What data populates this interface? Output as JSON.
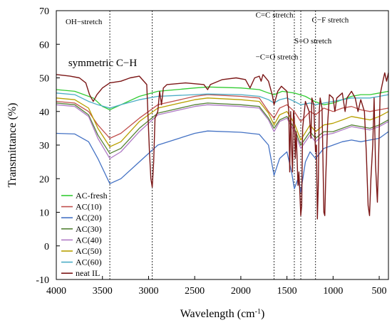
{
  "chart_data": {
    "type": "line",
    "xlabel_main": "Wavelength (cm",
    "xlabel_sup": "-1",
    "xlabel_end": ")",
    "ylabel": "Transmittance (%)",
    "xlim": [
      4000,
      400
    ],
    "ylim": [
      -10,
      70
    ],
    "xticks": [
      4000,
      3500,
      3000,
      2500,
      2000,
      1500,
      1000,
      500
    ],
    "yticks": [
      -10,
      0,
      10,
      20,
      30,
      40,
      50,
      60,
      70
    ],
    "grid": false,
    "legend_position": "bottom-left",
    "reference_lines": [
      3420,
      2960,
      1640,
      1420,
      1350,
      1190
    ],
    "annotations": [
      {
        "text": "OH−stretch",
        "x": 3900,
        "y": 66,
        "size": 11
      },
      {
        "text": "symmetric C−H",
        "x": 3870,
        "y": 53.5,
        "size": 15
      },
      {
        "text": "C=C stretch",
        "x": 1840,
        "y": 68,
        "size": 11
      },
      {
        "text": "−C=O stretch",
        "x": 1840,
        "y": 55.5,
        "size": 11
      },
      {
        "text": "C−F stretch",
        "x": 1230,
        "y": 66.5,
        "size": 11
      },
      {
        "text": "S=O stretch",
        "x": 1420,
        "y": 60.3,
        "size": 11
      }
    ],
    "series": [
      {
        "name": "AC-fresh",
        "color": "#33cc33",
        "points": [
          [
            4000,
            46.5
          ],
          [
            3800,
            46
          ],
          [
            3600,
            44
          ],
          [
            3500,
            41.5
          ],
          [
            3420,
            40.5
          ],
          [
            3300,
            42
          ],
          [
            3100,
            44.5
          ],
          [
            2900,
            46
          ],
          [
            2500,
            47
          ],
          [
            2360,
            47.3
          ],
          [
            2000,
            47
          ],
          [
            1800,
            46.5
          ],
          [
            1700,
            45.5
          ],
          [
            1640,
            45
          ],
          [
            1550,
            46
          ],
          [
            1420,
            45.5
          ],
          [
            1300,
            44.5
          ],
          [
            1200,
            43
          ],
          [
            1100,
            42
          ],
          [
            1000,
            42.5
          ],
          [
            900,
            43.5
          ],
          [
            800,
            44.5
          ],
          [
            700,
            45
          ],
          [
            600,
            45
          ],
          [
            500,
            45.5
          ],
          [
            400,
            46
          ]
        ]
      },
      {
        "name": "AC(10)",
        "color": "#c0504d",
        "points": [
          [
            4000,
            43
          ],
          [
            3800,
            42.5
          ],
          [
            3650,
            40
          ],
          [
            3550,
            36
          ],
          [
            3420,
            32
          ],
          [
            3300,
            33.5
          ],
          [
            3100,
            38
          ],
          [
            2900,
            42
          ],
          [
            2500,
            44.5
          ],
          [
            2360,
            45
          ],
          [
            2000,
            44.5
          ],
          [
            1800,
            44
          ],
          [
            1700,
            40
          ],
          [
            1640,
            38
          ],
          [
            1580,
            41
          ],
          [
            1500,
            42
          ],
          [
            1420,
            40
          ],
          [
            1350,
            37
          ],
          [
            1250,
            40
          ],
          [
            1190,
            39
          ],
          [
            1100,
            41
          ],
          [
            1000,
            40
          ],
          [
            900,
            41
          ],
          [
            800,
            41.5
          ],
          [
            700,
            40.5
          ],
          [
            600,
            40
          ],
          [
            500,
            40.5
          ],
          [
            400,
            41
          ]
        ]
      },
      {
        "name": "AC(20)",
        "color": "#4472c4",
        "points": [
          [
            4000,
            33.5
          ],
          [
            3800,
            33.3
          ],
          [
            3650,
            31
          ],
          [
            3550,
            26
          ],
          [
            3420,
            18.5
          ],
          [
            3300,
            20
          ],
          [
            3100,
            25
          ],
          [
            2900,
            30
          ],
          [
            2500,
            33.5
          ],
          [
            2360,
            34.2
          ],
          [
            2000,
            33.8
          ],
          [
            1800,
            33.2
          ],
          [
            1700,
            30
          ],
          [
            1640,
            21
          ],
          [
            1580,
            26
          ],
          [
            1500,
            28
          ],
          [
            1450,
            22
          ],
          [
            1420,
            17
          ],
          [
            1380,
            20
          ],
          [
            1350,
            16
          ],
          [
            1300,
            25
          ],
          [
            1250,
            28
          ],
          [
            1190,
            26
          ],
          [
            1100,
            29
          ],
          [
            1000,
            30
          ],
          [
            900,
            31
          ],
          [
            800,
            31.5
          ],
          [
            700,
            31
          ],
          [
            600,
            31.5
          ],
          [
            500,
            32
          ],
          [
            400,
            34
          ]
        ]
      },
      {
        "name": "AC(30)",
        "color": "#548235",
        "points": [
          [
            4000,
            42.5
          ],
          [
            3800,
            42
          ],
          [
            3650,
            39
          ],
          [
            3550,
            33
          ],
          [
            3420,
            27.5
          ],
          [
            3300,
            29
          ],
          [
            3100,
            35
          ],
          [
            2900,
            39.5
          ],
          [
            2500,
            42
          ],
          [
            2360,
            42.5
          ],
          [
            2000,
            42
          ],
          [
            1800,
            41.5
          ],
          [
            1700,
            38
          ],
          [
            1640,
            35
          ],
          [
            1580,
            37.5
          ],
          [
            1500,
            38.5
          ],
          [
            1420,
            35
          ],
          [
            1350,
            30
          ],
          [
            1250,
            34
          ],
          [
            1190,
            32
          ],
          [
            1100,
            34
          ],
          [
            1000,
            34
          ],
          [
            900,
            35
          ],
          [
            800,
            36
          ],
          [
            700,
            35.5
          ],
          [
            600,
            35
          ],
          [
            500,
            36
          ],
          [
            400,
            37.5
          ]
        ]
      },
      {
        "name": "AC(40)",
        "color": "#b07cc6",
        "points": [
          [
            4000,
            42
          ],
          [
            3800,
            41.5
          ],
          [
            3650,
            38.5
          ],
          [
            3550,
            32
          ],
          [
            3420,
            26
          ],
          [
            3300,
            28
          ],
          [
            3100,
            34
          ],
          [
            2900,
            39
          ],
          [
            2500,
            41.5
          ],
          [
            2360,
            42
          ],
          [
            2000,
            41.5
          ],
          [
            1800,
            41
          ],
          [
            1700,
            37.5
          ],
          [
            1640,
            34
          ],
          [
            1580,
            37
          ],
          [
            1500,
            38
          ],
          [
            1420,
            34
          ],
          [
            1350,
            29
          ],
          [
            1250,
            33
          ],
          [
            1190,
            31
          ],
          [
            1100,
            33
          ],
          [
            1000,
            33.5
          ],
          [
            900,
            34.5
          ],
          [
            800,
            35.5
          ],
          [
            700,
            35
          ],
          [
            600,
            34.5
          ],
          [
            500,
            35.5
          ],
          [
            400,
            37
          ]
        ]
      },
      {
        "name": "AC(50)",
        "color": "#b8a000",
        "points": [
          [
            4000,
            44
          ],
          [
            3800,
            43.5
          ],
          [
            3650,
            41
          ],
          [
            3550,
            35
          ],
          [
            3420,
            29.5
          ],
          [
            3300,
            31
          ],
          [
            3100,
            37
          ],
          [
            2900,
            41
          ],
          [
            2500,
            43.5
          ],
          [
            2360,
            44
          ],
          [
            2000,
            43.5
          ],
          [
            1800,
            43
          ],
          [
            1700,
            39.5
          ],
          [
            1640,
            36
          ],
          [
            1580,
            39
          ],
          [
            1500,
            40
          ],
          [
            1420,
            36.5
          ],
          [
            1350,
            31.5
          ],
          [
            1250,
            36
          ],
          [
            1190,
            34
          ],
          [
            1100,
            36
          ],
          [
            1000,
            36.5
          ],
          [
            900,
            37.5
          ],
          [
            800,
            38.5
          ],
          [
            700,
            38
          ],
          [
            600,
            37.5
          ],
          [
            500,
            38.5
          ],
          [
            400,
            40
          ]
        ]
      },
      {
        "name": "AC(60)",
        "color": "#4bacc6",
        "points": [
          [
            4000,
            45.5
          ],
          [
            3800,
            45
          ],
          [
            3650,
            43
          ],
          [
            3550,
            42
          ],
          [
            3420,
            41
          ],
          [
            3300,
            42
          ],
          [
            3100,
            43.5
          ],
          [
            2900,
            44.5
          ],
          [
            2500,
            45
          ],
          [
            2360,
            45.2
          ],
          [
            2000,
            45
          ],
          [
            1800,
            44.5
          ],
          [
            1700,
            43.5
          ],
          [
            1640,
            42.5
          ],
          [
            1580,
            43.5
          ],
          [
            1500,
            44
          ],
          [
            1420,
            43
          ],
          [
            1350,
            42
          ],
          [
            1250,
            42.5
          ],
          [
            1190,
            42
          ],
          [
            1100,
            42.5
          ],
          [
            1000,
            43
          ],
          [
            900,
            43.5
          ],
          [
            800,
            44
          ],
          [
            700,
            44
          ],
          [
            600,
            44
          ],
          [
            500,
            44.5
          ],
          [
            400,
            45
          ]
        ]
      },
      {
        "name": "neat IL",
        "color": "#7b1616",
        "points": [
          [
            4000,
            51
          ],
          [
            3850,
            50.5
          ],
          [
            3750,
            50
          ],
          [
            3680,
            48.5
          ],
          [
            3640,
            45
          ],
          [
            3600,
            43
          ],
          [
            3560,
            45
          ],
          [
            3500,
            47
          ],
          [
            3420,
            48.5
          ],
          [
            3300,
            49
          ],
          [
            3200,
            50
          ],
          [
            3100,
            50.5
          ],
          [
            3020,
            48
          ],
          [
            2990,
            28
          ],
          [
            2975,
            20
          ],
          [
            2960,
            17.5
          ],
          [
            2945,
            25
          ],
          [
            2930,
            38
          ],
          [
            2900,
            40
          ],
          [
            2880,
            46
          ],
          [
            2860,
            42
          ],
          [
            2840,
            47
          ],
          [
            2800,
            48
          ],
          [
            2600,
            48.5
          ],
          [
            2400,
            48
          ],
          [
            2360,
            46.5
          ],
          [
            2330,
            48
          ],
          [
            2200,
            49.5
          ],
          [
            2050,
            50
          ],
          [
            1950,
            49.5
          ],
          [
            1900,
            47
          ],
          [
            1850,
            50
          ],
          [
            1800,
            50.5
          ],
          [
            1780,
            49
          ],
          [
            1760,
            51
          ],
          [
            1700,
            49
          ],
          [
            1660,
            45
          ],
          [
            1640,
            42
          ],
          [
            1600,
            46
          ],
          [
            1560,
            47.5
          ],
          [
            1500,
            46
          ],
          [
            1480,
            40
          ],
          [
            1470,
            22
          ],
          [
            1460,
            40
          ],
          [
            1450,
            30
          ],
          [
            1440,
            22
          ],
          [
            1430,
            40
          ],
          [
            1420,
            38
          ],
          [
            1410,
            26
          ],
          [
            1400,
            34
          ],
          [
            1380,
            18
          ],
          [
            1370,
            22
          ],
          [
            1360,
            16
          ],
          [
            1350,
            9
          ],
          [
            1340,
            12
          ],
          [
            1330,
            35
          ],
          [
            1300,
            43
          ],
          [
            1260,
            40
          ],
          [
            1240,
            32
          ],
          [
            1230,
            44
          ],
          [
            1210,
            42
          ],
          [
            1200,
            35
          ],
          [
            1190,
            28
          ],
          [
            1180,
            30
          ],
          [
            1170,
            8
          ],
          [
            1160,
            18
          ],
          [
            1150,
            40
          ],
          [
            1140,
            44
          ],
          [
            1120,
            41
          ],
          [
            1110,
            26
          ],
          [
            1100,
            10
          ],
          [
            1090,
            9
          ],
          [
            1080,
            20
          ],
          [
            1060,
            36
          ],
          [
            1040,
            45
          ],
          [
            1000,
            44
          ],
          [
            980,
            40
          ],
          [
            960,
            44
          ],
          [
            900,
            45.5
          ],
          [
            870,
            40
          ],
          [
            850,
            44
          ],
          [
            800,
            46
          ],
          [
            760,
            44
          ],
          [
            730,
            40
          ],
          [
            700,
            43.5
          ],
          [
            660,
            40
          ],
          [
            640,
            28
          ],
          [
            620,
            12
          ],
          [
            605,
            9
          ],
          [
            590,
            20
          ],
          [
            570,
            30
          ],
          [
            555,
            44
          ],
          [
            540,
            24
          ],
          [
            520,
            13
          ],
          [
            505,
            28
          ],
          [
            490,
            45
          ],
          [
            460,
            49
          ],
          [
            440,
            51.5
          ],
          [
            420,
            49
          ],
          [
            400,
            51.5
          ]
        ]
      }
    ]
  }
}
